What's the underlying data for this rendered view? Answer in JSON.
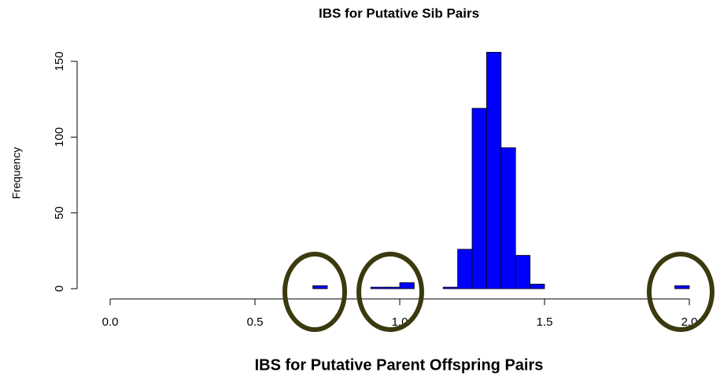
{
  "chart_data": {
    "type": "histogram",
    "title": "IBS for Putative Sib Pairs",
    "xlabel": "IBS for Putative Parent Offspring Pairs",
    "ylabel": "Frequency",
    "bins": [
      0,
      0.05,
      0.1,
      0.15,
      0.2,
      0.25,
      0.3,
      0.35,
      0.4,
      0.45,
      0.5,
      0.55,
      0.6,
      0.65,
      0.7,
      0.75,
      0.8,
      0.85,
      0.9,
      0.95,
      1.0,
      1.05,
      1.1,
      1.15,
      1.2,
      1.25,
      1.3,
      1.35,
      1.4,
      1.45,
      1.5,
      1.55,
      1.6,
      1.65,
      1.7,
      1.75,
      1.8,
      1.85,
      1.9,
      1.95,
      2.0
    ],
    "values": [
      0,
      0,
      0,
      0,
      0,
      0,
      0,
      0,
      0,
      0,
      0,
      0,
      0,
      0,
      2,
      0,
      0,
      0,
      1,
      1,
      4,
      0,
      0,
      1,
      26,
      119,
      156,
      93,
      22,
      3,
      0,
      0,
      0,
      0,
      0,
      0,
      0,
      0,
      0,
      2
    ],
    "color": "#0000ff",
    "xlim": [
      0,
      2
    ],
    "xticks": [
      {
        "value": 0,
        "label": "0.0"
      },
      0.5,
      {
        "value": 1,
        "label": "1.0"
      },
      1.5,
      {
        "value": 2,
        "label": "2.0"
      }
    ],
    "ylim": [
      0,
      160
    ],
    "yticks": [
      0,
      50,
      100,
      150
    ]
  }
}
